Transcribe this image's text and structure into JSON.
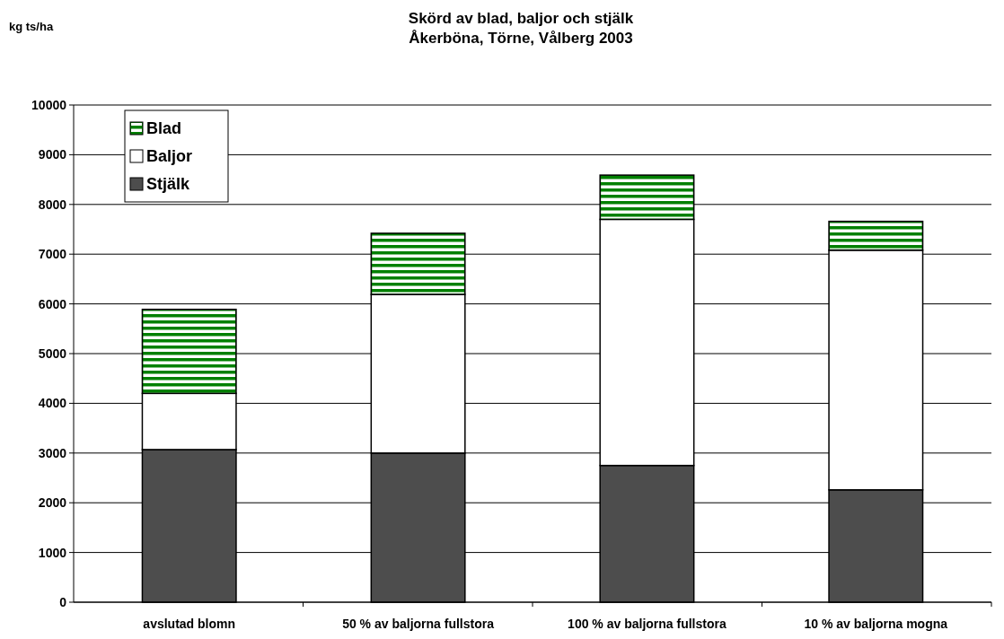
{
  "chart_data": {
    "type": "bar",
    "title": "Skörd av blad, baljor och stjälk\nÅkerböna, Törne, Vålberg 2003",
    "annotations": [
      "kg ts/ha"
    ],
    "categories": [
      "avslutad blomn",
      "50 % av baljorna fullstora",
      "100 % av baljorna fullstora",
      "10 % av baljorna mogna"
    ],
    "stacked": true,
    "series": [
      {
        "name": "Stjälk",
        "color": "#4d4d4d",
        "values": [
          3070,
          3000,
          2750,
          2260
        ]
      },
      {
        "name": "Baljor",
        "color": "#ffffff",
        "values": [
          1130,
          3190,
          4950,
          4820
        ]
      },
      {
        "name": "Blad",
        "color": "#008000",
        "values": [
          1690,
          1230,
          890,
          580
        ]
      }
    ],
    "ylim": [
      0,
      10000
    ],
    "yticks": [
      0,
      1000,
      2000,
      3000,
      4000,
      5000,
      6000,
      7000,
      8000,
      9000,
      10000
    ],
    "grid": "y",
    "legend": "top left"
  }
}
